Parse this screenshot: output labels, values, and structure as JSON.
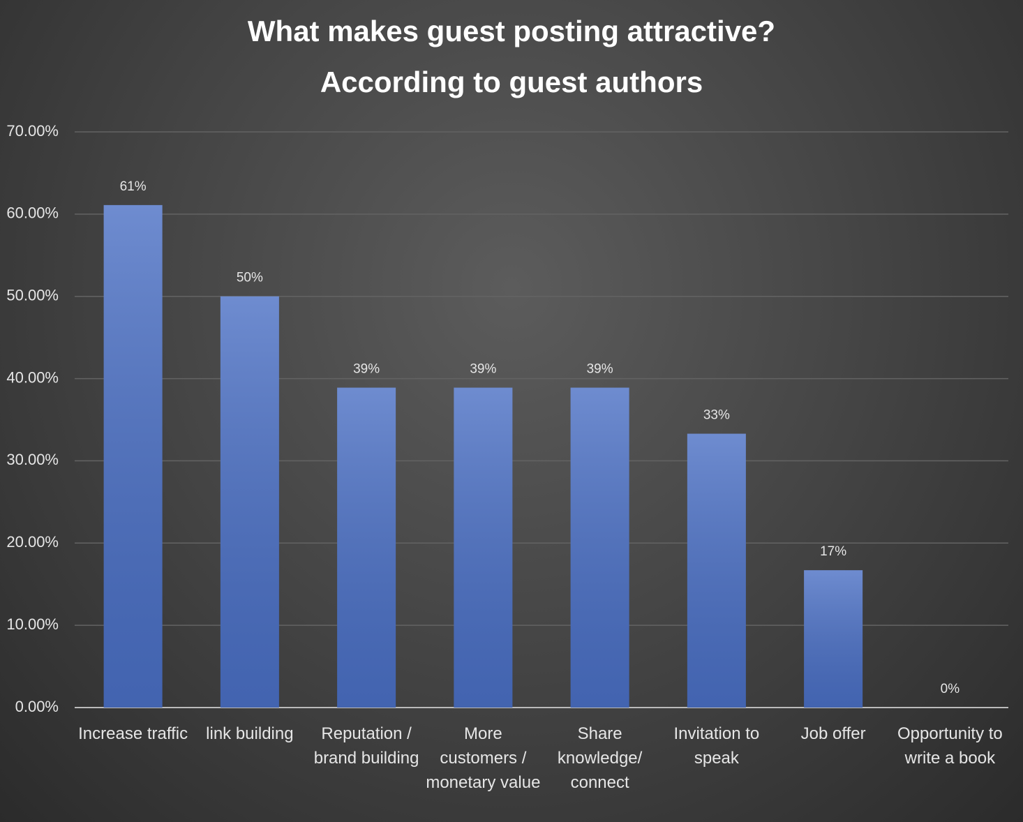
{
  "chart_data": {
    "type": "bar",
    "title": "What makes guest posting attractive?",
    "subtitle": "According to guest authors",
    "categories": [
      "Increase traffic",
      "link building",
      "Reputation / brand building",
      "More customers / monetary value",
      "Share knowledge/ connect",
      "Invitation to speak",
      "Job offer",
      "Opportunity to write a book"
    ],
    "values": [
      61.1,
      50,
      38.9,
      38.9,
      38.9,
      33.3,
      16.7,
      0
    ],
    "value_labels": [
      "61%",
      "50%",
      "39%",
      "39%",
      "39%",
      "33%",
      "17%",
      "0%"
    ],
    "color": "#4a6fc4",
    "ylim": [
      0,
      70
    ],
    "yticks": [
      {
        "value": 0,
        "label": "0.00%"
      },
      {
        "value": 10,
        "label": "10.00%"
      },
      {
        "value": 20,
        "label": "20.00%"
      },
      {
        "value": 30,
        "label": "30.00%"
      },
      {
        "value": 40,
        "label": "40.00%"
      },
      {
        "value": 50,
        "label": "50.00%"
      },
      {
        "value": 60,
        "label": "60.00%"
      },
      {
        "value": 70,
        "label": "70.00%"
      }
    ],
    "grid": true
  }
}
